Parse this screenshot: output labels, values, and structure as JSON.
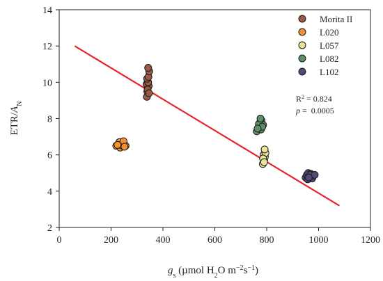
{
  "chart_data": {
    "type": "scatter",
    "title": "",
    "xlim": [
      0,
      1200
    ],
    "ylim": [
      2,
      14
    ],
    "x_ticks": [
      "0",
      "200",
      "400",
      "600",
      "800",
      "1000",
      "1200"
    ],
    "y_ticks": [
      "2",
      "4",
      "6",
      "8",
      "10",
      "12",
      "14"
    ],
    "xlabel": {
      "base": "g",
      "sub": "s",
      "rest": " (µmol H",
      "sub2": "2",
      "rest2": "O m",
      "sup": "−2",
      "rest3": "s",
      "sup2": "−1",
      "close": ")"
    },
    "ylabel": {
      "base": "ETR/",
      "italic": "A",
      "sub": "N"
    },
    "legend_position": "top-right",
    "series": [
      {
        "name": "Morita II",
        "color": "#9b5a45",
        "points": [
          [
            338,
            9.2
          ],
          [
            340,
            9.5
          ],
          [
            342,
            9.7
          ],
          [
            345,
            9.8
          ],
          [
            337,
            9.9
          ],
          [
            343,
            10.0
          ],
          [
            339,
            10.2
          ],
          [
            344,
            10.3
          ],
          [
            341,
            9.6
          ],
          [
            347,
            10.6
          ],
          [
            343,
            10.8
          ],
          [
            346,
            9.4
          ]
        ]
      },
      {
        "name": "L020",
        "color": "#f5922f",
        "points": [
          [
            220,
            6.5
          ],
          [
            228,
            6.6
          ],
          [
            235,
            6.4
          ],
          [
            240,
            6.7
          ],
          [
            245,
            6.5
          ],
          [
            250,
            6.6
          ],
          [
            232,
            6.7
          ],
          [
            256,
            6.5
          ],
          [
            238,
            6.55
          ],
          [
            248,
            6.75
          ],
          [
            225,
            6.55
          ],
          [
            252,
            6.45
          ]
        ]
      },
      {
        "name": "L057",
        "color": "#e8e29a",
        "points": [
          [
            785,
            5.5
          ],
          [
            790,
            5.7
          ],
          [
            793,
            5.9
          ],
          [
            788,
            6.0
          ],
          [
            795,
            6.1
          ],
          [
            792,
            6.3
          ],
          [
            786,
            5.8
          ],
          [
            790,
            5.6
          ]
        ]
      },
      {
        "name": "L082",
        "color": "#5f8f6a",
        "points": [
          [
            762,
            7.3
          ],
          [
            768,
            7.5
          ],
          [
            772,
            7.6
          ],
          [
            778,
            7.4
          ],
          [
            775,
            7.8
          ],
          [
            780,
            7.9
          ],
          [
            786,
            7.65
          ],
          [
            770,
            7.7
          ],
          [
            783,
            7.55
          ],
          [
            765,
            7.45
          ],
          [
            776,
            8.0
          ]
        ]
      },
      {
        "name": "L102",
        "color": "#4f4a7a",
        "points": [
          [
            950,
            4.75
          ],
          [
            955,
            4.9
          ],
          [
            960,
            5.0
          ],
          [
            965,
            4.8
          ],
          [
            970,
            4.95
          ],
          [
            975,
            4.7
          ],
          [
            980,
            4.85
          ],
          [
            958,
            4.65
          ],
          [
            968,
            4.9
          ],
          [
            985,
            4.9
          ],
          [
            962,
            4.75
          ]
        ]
      }
    ],
    "fit_line": {
      "color": "#e8232a",
      "points": [
        [
          60,
          12.0
        ],
        [
          1080,
          3.2
        ]
      ]
    },
    "stats": {
      "r2_prefix": "R",
      "r2_sup": "2",
      "r2_value": " = 0.824",
      "p_label": "p",
      "p_value": " =  0.0005"
    }
  }
}
